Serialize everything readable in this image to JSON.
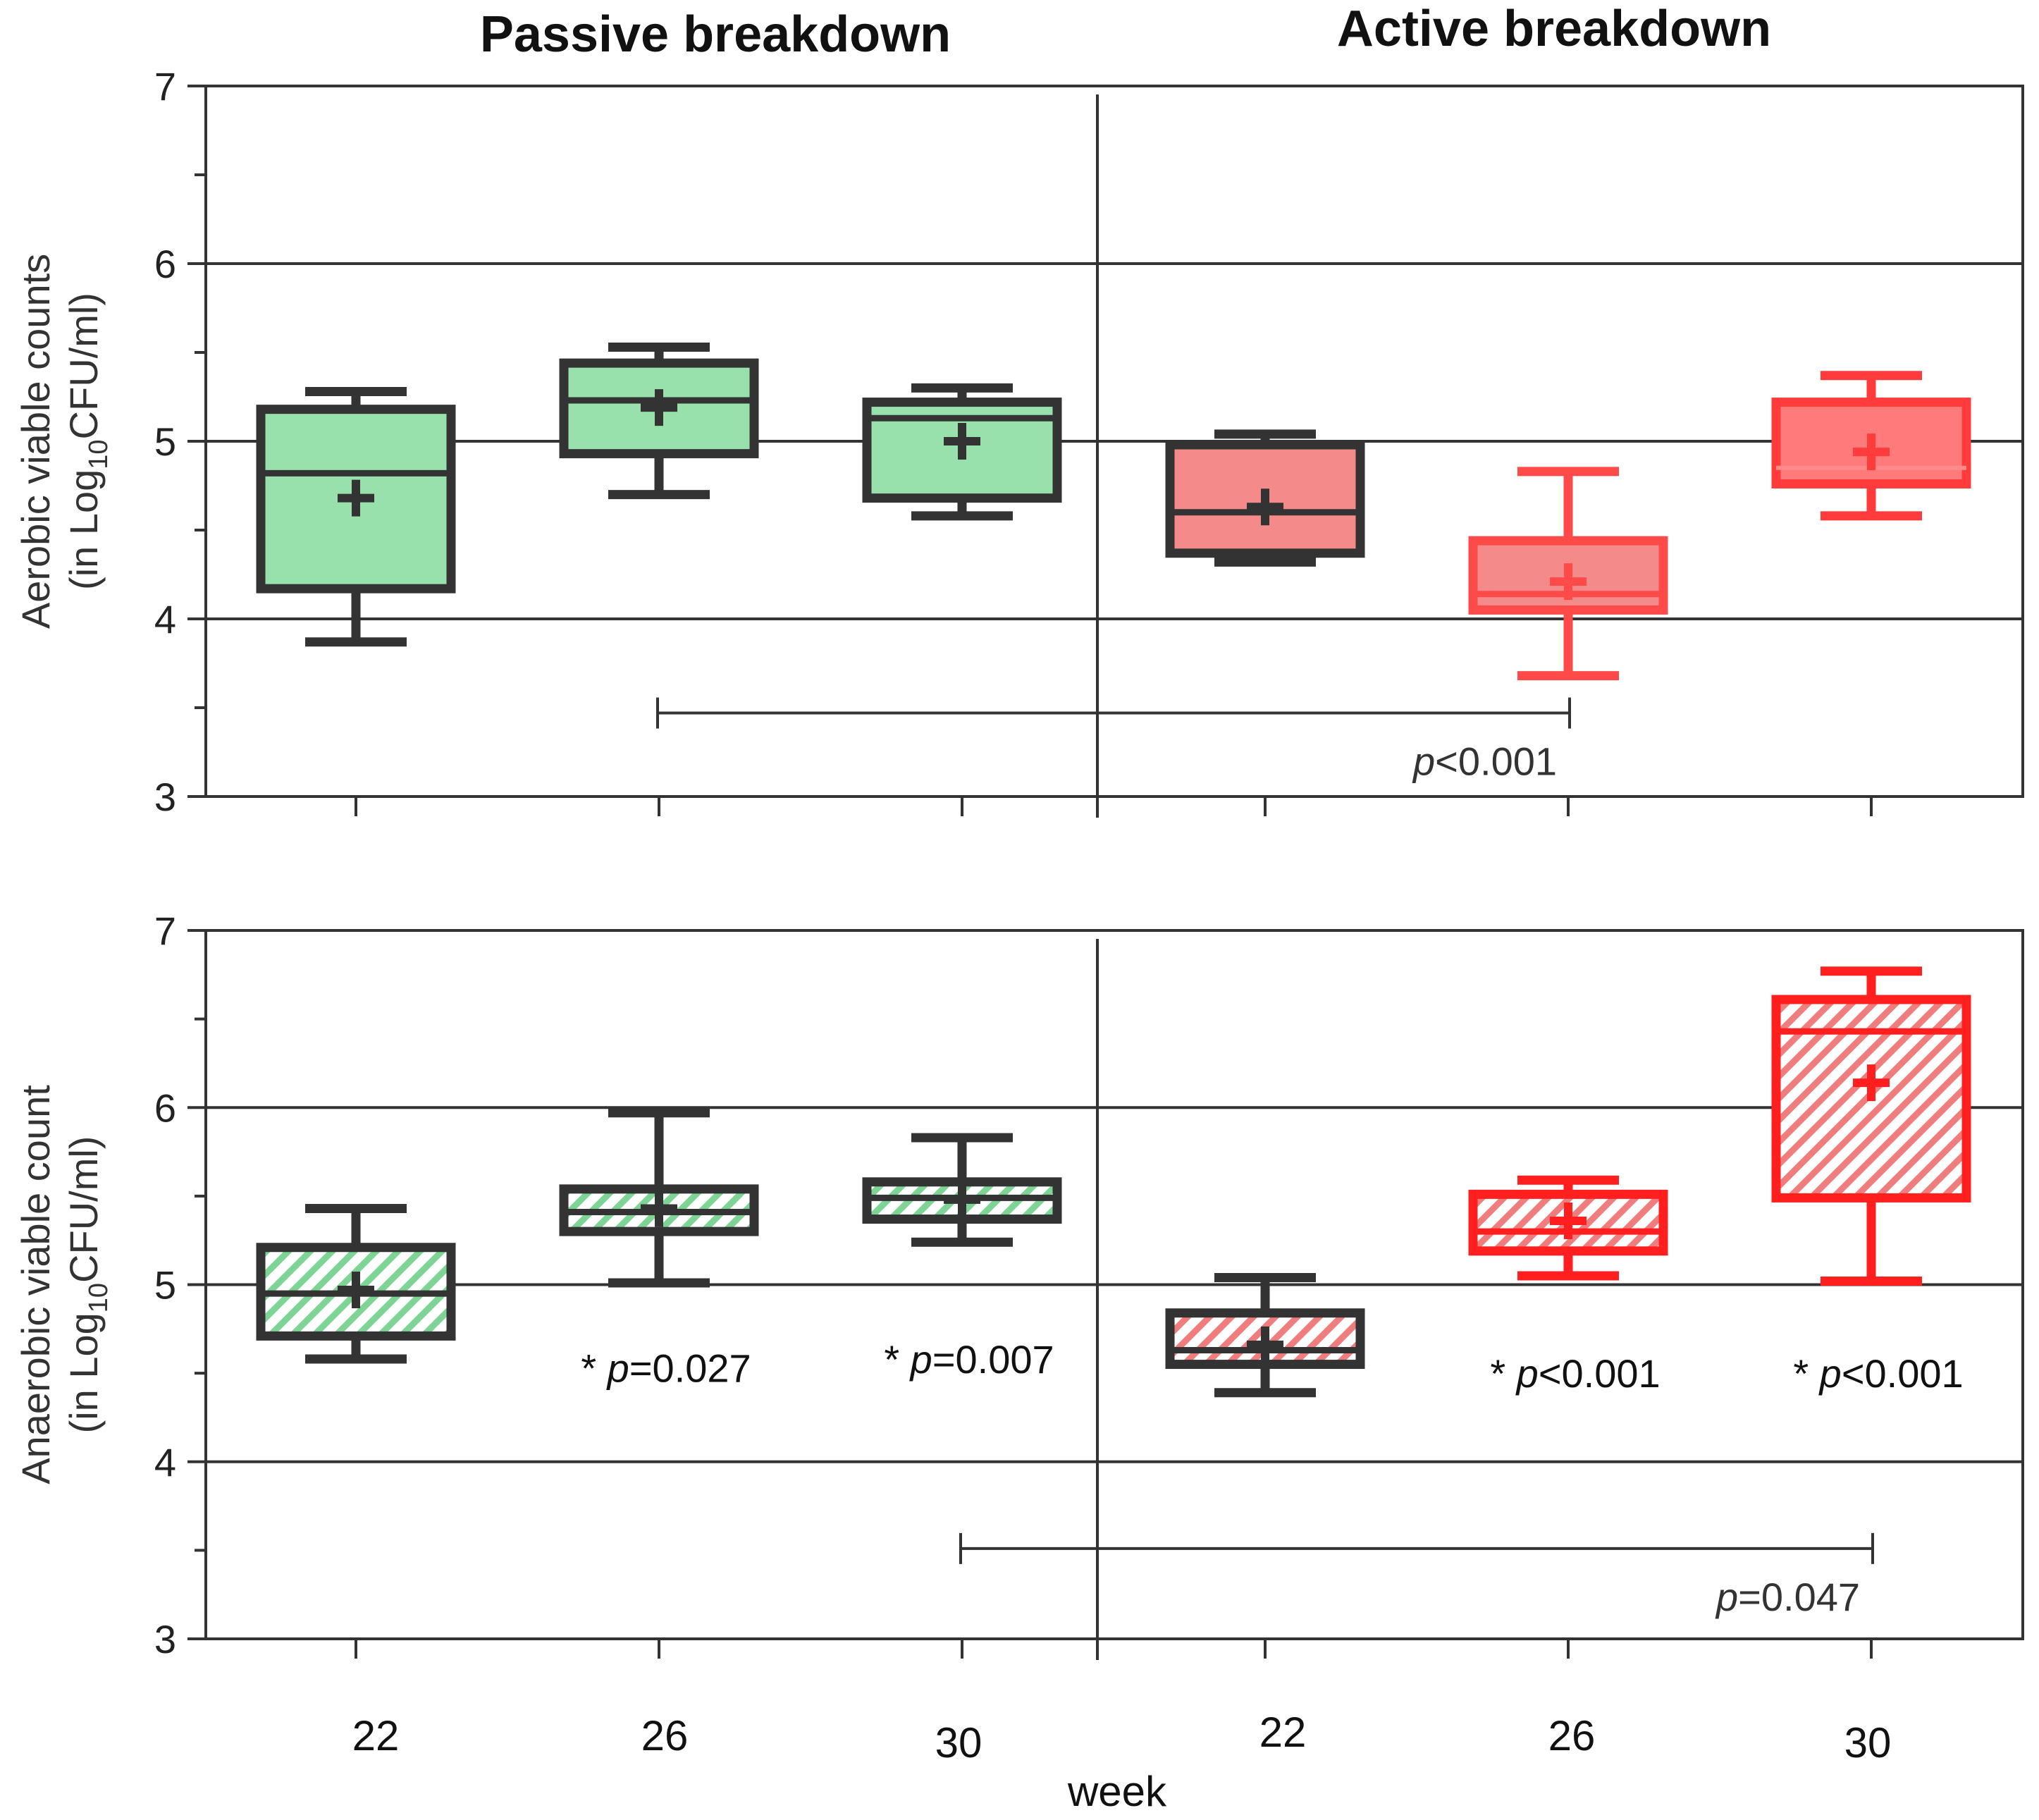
{
  "chart_data": {
    "type": "boxplot",
    "group_titles": [
      "Passive breakdown",
      "Active breakdown"
    ],
    "xlabel": "week",
    "categories": [
      "22",
      "26",
      "30",
      "22",
      "26",
      "30"
    ],
    "colors": {
      "passive_fill": "#98e0ac",
      "passive_stroke": "#333333",
      "active_fill_1": "#f58a8a",
      "active_stroke_1": "#333333",
      "active_fill_2": "#f58a8a",
      "active_stroke_2": "#ff4a4a",
      "active_fill_3": "#ff7a7a",
      "active_stroke_3": "#ff3b3b",
      "anaerobic_passive_hatch": "#7dd495",
      "anaerobic_active_hatch": "#f07d7d",
      "bright_red": "#ff1f1f",
      "axis": "#333333"
    },
    "panels": [
      {
        "id": "aerobic",
        "ylabel_line1": "Aerobic viable counts",
        "ylabel_line2_prefix": "(in Log",
        "ylabel_sub": "10",
        "ylabel_line2_suffix": "CFU/ml)",
        "ylim": [
          3,
          7
        ],
        "yticks": [
          "3",
          "4",
          "5",
          "6",
          "7"
        ],
        "gridlines": [
          4,
          5,
          6
        ],
        "hatched": false,
        "boxes": [
          {
            "group": "Passive breakdown",
            "week": "22",
            "min": 3.87,
            "q1": 4.17,
            "median": 4.82,
            "q3": 5.18,
            "max": 5.28,
            "mean": 4.68
          },
          {
            "group": "Passive breakdown",
            "week": "26",
            "min": 4.7,
            "q1": 4.93,
            "median": 5.23,
            "q3": 5.44,
            "max": 5.53,
            "mean": 5.19
          },
          {
            "group": "Passive breakdown",
            "week": "30",
            "min": 4.58,
            "q1": 4.68,
            "median": 5.13,
            "q3": 5.22,
            "max": 5.3,
            "mean": 5.0
          },
          {
            "group": "Active breakdown",
            "week": "22",
            "min": 4.32,
            "q1": 4.37,
            "median": 4.6,
            "q3": 4.98,
            "max": 5.04,
            "mean": 4.63
          },
          {
            "group": "Active breakdown",
            "week": "26",
            "min": 3.68,
            "q1": 4.05,
            "median": 4.14,
            "q3": 4.44,
            "max": 4.83,
            "mean": 4.21
          },
          {
            "group": "Active breakdown",
            "week": "30",
            "min": 4.58,
            "q1": 4.76,
            "median": 4.85,
            "q3": 5.22,
            "max": 5.37,
            "mean": 4.94
          }
        ],
        "brackets": [
          {
            "from_index": 1,
            "to_index": 4,
            "y": 3.47,
            "label_prefix": "p",
            "label_value": "<0.001"
          }
        ],
        "annotations": []
      },
      {
        "id": "anaerobic",
        "ylabel_line1": "Anaerobic viable count",
        "ylabel_line2_prefix": "(in Log",
        "ylabel_sub": "10",
        "ylabel_line2_suffix": "CFU/ml)",
        "ylim": [
          3,
          7
        ],
        "yticks": [
          "3",
          "4",
          "5",
          "6",
          "7"
        ],
        "gridlines": [
          4,
          5,
          6
        ],
        "hatched": true,
        "boxes": [
          {
            "group": "Passive breakdown",
            "week": "22",
            "min": 4.58,
            "q1": 4.71,
            "median": 4.95,
            "q3": 5.21,
            "max": 5.43,
            "mean": 4.97
          },
          {
            "group": "Passive breakdown",
            "week": "26",
            "min": 5.01,
            "q1": 5.3,
            "median": 5.41,
            "q3": 5.54,
            "max": 5.97,
            "mean": 5.43
          },
          {
            "group": "Passive breakdown",
            "week": "30",
            "min": 5.24,
            "q1": 5.37,
            "median": 5.49,
            "q3": 5.58,
            "max": 5.83,
            "mean": 5.48
          },
          {
            "group": "Active breakdown",
            "week": "22",
            "min": 4.39,
            "q1": 4.55,
            "median": 4.63,
            "q3": 4.84,
            "max": 5.04,
            "mean": 4.66
          },
          {
            "group": "Active breakdown",
            "week": "26",
            "min": 5.05,
            "q1": 5.19,
            "median": 5.3,
            "q3": 5.51,
            "max": 5.59,
            "mean": 5.36
          },
          {
            "group": "Active breakdown",
            "week": "30",
            "min": 5.02,
            "q1": 5.49,
            "median": 6.43,
            "q3": 6.61,
            "max": 6.77,
            "mean": 6.14
          }
        ],
        "brackets": [
          {
            "from_index": 2,
            "to_index": 5,
            "y": 3.51,
            "label_prefix": "p",
            "label_value": "=0.047"
          }
        ],
        "annotations": [
          {
            "index": 1,
            "y": 4.45,
            "star": "*",
            "prefix": "p",
            "value": "=0.027"
          },
          {
            "index": 2,
            "y": 4.5,
            "star": "*",
            "prefix": "p",
            "value": "=0.007"
          },
          {
            "index": 4,
            "y": 4.42,
            "star": "*",
            "prefix": "p",
            "value": "<0.001"
          },
          {
            "index": 5,
            "y": 4.42,
            "star": "*",
            "prefix": "p",
            "value": "<0.001"
          }
        ]
      }
    ]
  }
}
